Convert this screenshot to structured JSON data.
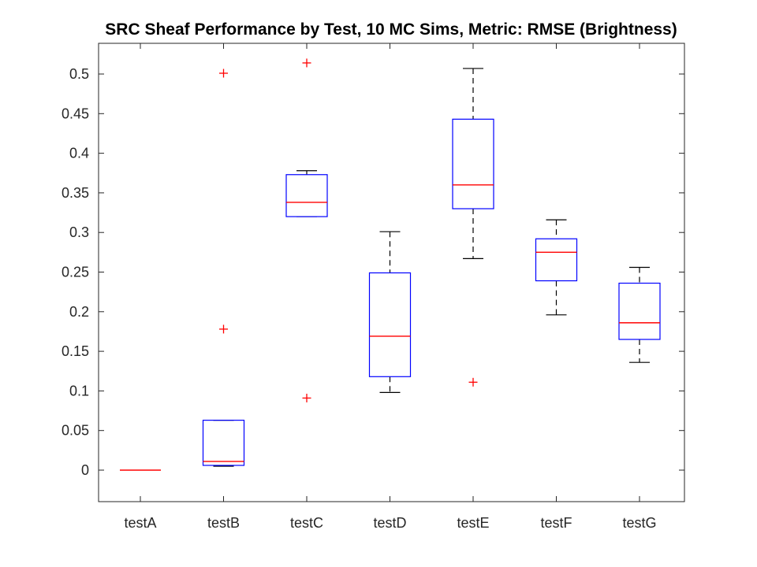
{
  "chart_data": {
    "type": "box",
    "title": "SRC Sheaf Performance by Test, 10 MC Sims, Metric: RMSE (Brightness)",
    "xlabel": "",
    "ylabel": "",
    "ylim": [
      -0.04,
      0.54
    ],
    "yticks": [
      0,
      0.05,
      0.1,
      0.15,
      0.2,
      0.25,
      0.3,
      0.35,
      0.4,
      0.45,
      0.5
    ],
    "ytick_labels": [
      "0",
      "0.05",
      "0.1",
      "0.15",
      "0.2",
      "0.25",
      "0.3",
      "0.35",
      "0.4",
      "0.45",
      "0.5"
    ],
    "categories": [
      "testA",
      "testB",
      "testC",
      "testD",
      "testE",
      "testF",
      "testG"
    ],
    "boxes": [
      {
        "name": "testA",
        "q1": 0,
        "median": 0,
        "q3": 0,
        "whisker_low": 0,
        "whisker_high": 0,
        "outliers": []
      },
      {
        "name": "testB",
        "q1": 0.006,
        "median": 0.011,
        "q3": 0.063,
        "whisker_low": 0.005,
        "whisker_high": 0.063,
        "outliers": [
          0.501,
          0.178
        ]
      },
      {
        "name": "testC",
        "q1": 0.32,
        "median": 0.338,
        "q3": 0.373,
        "whisker_low": 0.32,
        "whisker_high": 0.378,
        "outliers": [
          0.514,
          0.091
        ]
      },
      {
        "name": "testD",
        "q1": 0.118,
        "median": 0.169,
        "q3": 0.249,
        "whisker_low": 0.098,
        "whisker_high": 0.301,
        "outliers": []
      },
      {
        "name": "testE",
        "q1": 0.33,
        "median": 0.36,
        "q3": 0.443,
        "whisker_low": 0.267,
        "whisker_high": 0.507,
        "outliers": [
          0.111
        ]
      },
      {
        "name": "testF",
        "q1": 0.239,
        "median": 0.275,
        "q3": 0.292,
        "whisker_low": 0.196,
        "whisker_high": 0.316,
        "outliers": []
      },
      {
        "name": "testG",
        "q1": 0.165,
        "median": 0.186,
        "q3": 0.236,
        "whisker_low": 0.136,
        "whisker_high": 0.256,
        "outliers": []
      }
    ],
    "colors": {
      "box": "#0000ff",
      "median": "#ff0000",
      "whisker": "#000000",
      "outlier": "#ff0000",
      "axis": "#262626"
    }
  }
}
